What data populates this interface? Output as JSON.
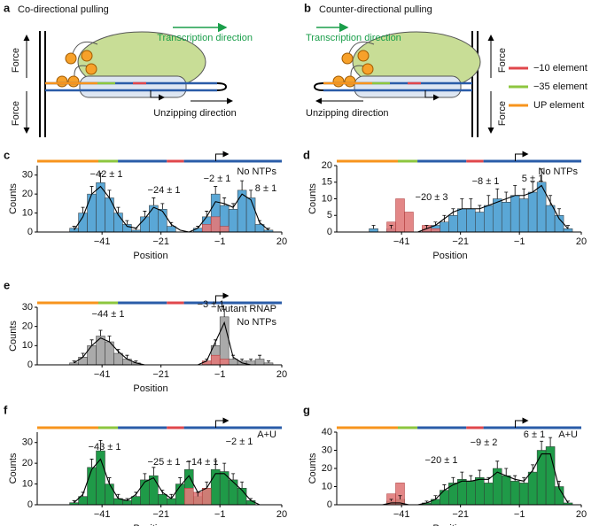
{
  "diagrams": [
    {
      "label": "a",
      "title": "Co-directional pulling",
      "force_top": "Force",
      "force_bottom": "Force",
      "transcription": "Transcription direction",
      "unzipping": "Unzipping direction"
    },
    {
      "label": "b",
      "title": "Counter-directional pulling",
      "force_top": "Force",
      "force_bottom": "Force",
      "transcription": "Transcription direction",
      "unzipping": "Unzipping direction"
    }
  ],
  "legend": [
    {
      "name": "−10 element",
      "color": "#e0474c"
    },
    {
      "name": "−35 element",
      "color": "#8dc63f"
    },
    {
      "name": "UP element",
      "color": "#f7941d"
    }
  ],
  "chart_data": [
    {
      "type": "histogram",
      "label": "c",
      "xlabel": "Position",
      "ylabel": "Counts",
      "color": "#5aa7d6",
      "red_color": "#e07a7a",
      "bins": [
        -52,
        -49,
        -46,
        -43,
        -40,
        -37,
        -34,
        -31,
        -28,
        -25,
        -22,
        -19,
        -16,
        -13,
        -10,
        -7,
        -4,
        -1,
        2,
        5,
        8,
        11,
        14,
        17
      ],
      "counts": [
        2,
        10,
        20,
        26,
        18,
        10,
        4,
        1,
        8,
        14,
        12,
        3,
        0,
        0,
        2,
        8,
        20,
        14,
        12,
        22,
        18,
        4,
        1
      ],
      "errors": [
        1,
        3,
        4,
        5,
        4,
        3,
        2,
        1,
        3,
        4,
        3,
        2,
        0,
        0,
        1,
        3,
        4,
        4,
        3,
        5,
        4,
        2,
        1
      ],
      "red_counts": [
        0,
        0,
        0,
        0,
        0,
        0,
        0,
        0,
        0,
        0,
        0,
        0,
        0,
        0,
        0,
        4,
        8,
        3,
        0,
        0,
        0,
        0,
        0
      ],
      "fit_x": [
        -50.5,
        -47.5,
        -44.5,
        -41.5,
        -38.5,
        -35.5,
        -32.5,
        -29.5,
        -26.5,
        -23.5,
        -20.5,
        -17.5,
        -14.5,
        -11.5,
        -8.5,
        -5.5,
        -2.5,
        0.5,
        3.5,
        6.5,
        9.5,
        12.5,
        15.5
      ],
      "fit_values": [
        1,
        8,
        20,
        24,
        18,
        9,
        3,
        2,
        7,
        13,
        11,
        4,
        1,
        0,
        2,
        8,
        16,
        15,
        13,
        20,
        17,
        5,
        1
      ],
      "xlim": [
        -63,
        20
      ],
      "xticks": [
        {
          "value": -41,
          "label": "−41"
        },
        {
          "value": -21,
          "label": "−21"
        },
        {
          "value": -1,
          "label": "−1"
        },
        20
      ],
      "ylim": [
        0,
        35
      ],
      "yticks": [
        0,
        10,
        20,
        30
      ],
      "annotations": [
        "−42 ± 1",
        "−24 ± 1",
        "−2 ± 1",
        "8 ± 1",
        "No NTPs"
      ]
    },
    {
      "type": "histogram",
      "label": "d",
      "xlabel": "Position",
      "ylabel": "Counts",
      "color": "#5aa7d6",
      "red_color": "#e07a7a",
      "bins": [
        -52,
        -49,
        -46,
        -43,
        -40,
        -37,
        -34,
        -31,
        -28,
        -25,
        -22,
        -19,
        -16,
        -13,
        -10,
        -7,
        -4,
        -1,
        2,
        5,
        8,
        11,
        14,
        17
      ],
      "counts": [
        1,
        0,
        1,
        0,
        0,
        0,
        1,
        2,
        3,
        5,
        7,
        7,
        6,
        8,
        10,
        9,
        11,
        10,
        12,
        15,
        8,
        5,
        1
      ],
      "errors": [
        1,
        0,
        1,
        0,
        0,
        0,
        1,
        1,
        2,
        2,
        3,
        3,
        2,
        3,
        3,
        3,
        3,
        3,
        3,
        4,
        3,
        2,
        1
      ],
      "red_counts": [
        0,
        0,
        3,
        10,
        6,
        0,
        2,
        1,
        0,
        0,
        0,
        0,
        0,
        0,
        0,
        0,
        0,
        0,
        0,
        0,
        0,
        0,
        0
      ],
      "fit_x": [
        -50.5,
        -47.5,
        -44.5,
        -41.5,
        -38.5,
        -35.5,
        -32.5,
        -29.5,
        -26.5,
        -23.5,
        -20.5,
        -17.5,
        -14.5,
        -11.5,
        -8.5,
        -5.5,
        -2.5,
        0.5,
        3.5,
        6.5,
        9.5,
        12.5,
        15.5
      ],
      "fit_values": [
        0,
        0,
        0,
        0,
        0,
        0,
        1,
        2,
        4,
        6,
        7,
        7,
        7,
        8,
        9,
        10,
        11,
        11,
        12,
        14,
        9,
        4,
        1
      ],
      "xlim": [
        -63,
        20
      ],
      "xticks": [
        {
          "value": -41,
          "label": "−41"
        },
        {
          "value": -21,
          "label": "−21"
        },
        {
          "value": -1,
          "label": "−1"
        },
        20
      ],
      "ylim": [
        0,
        20
      ],
      "yticks": [
        0,
        5,
        10,
        15,
        20
      ],
      "annotations": [
        "−20 ± 3",
        "−8 ± 1",
        "5 ± 1",
        "No NTPs"
      ]
    },
    {
      "type": "histogram",
      "label": "e",
      "xlabel": "Position",
      "ylabel": "Counts",
      "color": "#aaaaaa",
      "red_color": "#e07a7a",
      "bins": [
        -52,
        -49,
        -46,
        -43,
        -40,
        -37,
        -34,
        -31,
        -28,
        -25,
        -22,
        -19,
        -16,
        -13,
        -10,
        -7,
        -4,
        -1,
        2,
        5,
        8,
        11,
        14,
        17
      ],
      "counts": [
        1,
        4,
        10,
        15,
        12,
        6,
        3,
        1,
        0,
        0,
        0,
        0,
        0,
        0,
        0,
        2,
        10,
        25,
        3,
        2,
        2,
        3,
        1
      ],
      "errors": [
        1,
        2,
        3,
        3,
        3,
        2,
        2,
        1,
        0,
        0,
        0,
        0,
        0,
        0,
        0,
        1,
        3,
        4,
        2,
        1,
        1,
        2,
        1
      ],
      "red_counts": [
        0,
        0,
        0,
        0,
        0,
        0,
        0,
        0,
        0,
        0,
        0,
        0,
        0,
        0,
        0,
        2,
        5,
        3,
        0,
        0,
        0,
        0,
        0
      ],
      "fit_x": [
        -50.5,
        -47.5,
        -44.5,
        -41.5,
        -38.5,
        -35.5,
        -32.5,
        -29.5,
        -26.5,
        -23.5,
        -20.5,
        -17.5,
        -14.5,
        -11.5,
        -8.5,
        -5.5,
        -2.5,
        0.5,
        3.5,
        6.5,
        9.5,
        12.5,
        15.5
      ],
      "fit_values": [
        1,
        4,
        10,
        14,
        12,
        7,
        3,
        1,
        0,
        0,
        0,
        0,
        0,
        0,
        0,
        2,
        12,
        22,
        4,
        1,
        0,
        0,
        0
      ],
      "xlim": [
        -63,
        20
      ],
      "xticks": [
        {
          "value": -41,
          "label": "−41"
        },
        {
          "value": -21,
          "label": "−21"
        },
        {
          "value": -1,
          "label": "−1"
        },
        20
      ],
      "ylim": [
        0,
        30
      ],
      "yticks": [
        0,
        10,
        20,
        30
      ],
      "annotations": [
        "−44 ± 1",
        "−3 ± 1",
        "Mutant RNAP",
        "No NTPs"
      ]
    },
    {
      "type": "histogram",
      "label": "f",
      "xlabel": "Position",
      "ylabel": "Counts",
      "color": "#1f9a48",
      "red_color": "#e07a7a",
      "bins": [
        -52,
        -49,
        -46,
        -43,
        -40,
        -37,
        -34,
        -31,
        -28,
        -25,
        -22,
        -19,
        -16,
        -13,
        -10,
        -7,
        -4,
        -1,
        2,
        5,
        8,
        11,
        14,
        17
      ],
      "counts": [
        1,
        4,
        18,
        26,
        10,
        3,
        2,
        4,
        12,
        14,
        5,
        3,
        10,
        17,
        4,
        8,
        17,
        16,
        12,
        8,
        2,
        0,
        0
      ],
      "errors": [
        1,
        2,
        4,
        5,
        3,
        2,
        1,
        2,
        3,
        4,
        2,
        2,
        3,
        4,
        2,
        3,
        4,
        4,
        3,
        3,
        1,
        0,
        0
      ],
      "red_counts": [
        0,
        0,
        0,
        0,
        0,
        0,
        0,
        0,
        0,
        0,
        0,
        0,
        0,
        8,
        6,
        8,
        0,
        0,
        0,
        0,
        0,
        0,
        0
      ],
      "fit_x": [
        -50.5,
        -47.5,
        -44.5,
        -41.5,
        -38.5,
        -35.5,
        -32.5,
        -29.5,
        -26.5,
        -23.5,
        -20.5,
        -17.5,
        -14.5,
        -11.5,
        -8.5,
        -5.5,
        -2.5,
        0.5,
        3.5,
        6.5,
        9.5,
        12.5,
        15.5
      ],
      "fit_values": [
        1,
        5,
        17,
        22,
        10,
        3,
        2,
        5,
        11,
        13,
        6,
        3,
        9,
        14,
        6,
        8,
        15,
        15,
        11,
        7,
        2,
        0,
        0
      ],
      "xlim": [
        -63,
        20
      ],
      "xticks": [
        {
          "value": -41,
          "label": "−41"
        },
        {
          "value": -21,
          "label": "−21"
        },
        {
          "value": -1,
          "label": "−1"
        },
        20
      ],
      "ylim": [
        0,
        35
      ],
      "yticks": [
        0,
        10,
        20,
        30
      ],
      "annotations": [
        "−43 ± 1",
        "−25 ± 1",
        "−14 ± 1",
        "−2 ± 1",
        "A+U"
      ]
    },
    {
      "type": "histogram",
      "label": "g",
      "xlabel": "Position",
      "ylabel": "Counts",
      "color": "#1f9a48",
      "red_color": "#e07a7a",
      "bins": [
        -52,
        -49,
        -46,
        -43,
        -40,
        -37,
        -34,
        -31,
        -28,
        -25,
        -22,
        -19,
        -16,
        -13,
        -10,
        -7,
        -4,
        -1,
        2,
        5,
        8,
        11,
        14,
        17
      ],
      "counts": [
        0,
        0,
        2,
        3,
        0,
        0,
        1,
        3,
        8,
        12,
        14,
        13,
        15,
        12,
        20,
        16,
        13,
        12,
        18,
        30,
        32,
        10,
        1
      ],
      "errors": [
        0,
        0,
        1,
        2,
        0,
        0,
        1,
        2,
        3,
        3,
        4,
        3,
        4,
        3,
        4,
        4,
        3,
        3,
        4,
        5,
        5,
        3,
        1
      ],
      "red_counts": [
        0,
        0,
        6,
        12,
        0,
        0,
        0,
        0,
        0,
        0,
        0,
        0,
        0,
        0,
        0,
        0,
        0,
        0,
        0,
        0,
        0,
        0,
        0
      ],
      "fit_x": [
        -50.5,
        -47.5,
        -44.5,
        -41.5,
        -38.5,
        -35.5,
        -32.5,
        -29.5,
        -26.5,
        -23.5,
        -20.5,
        -17.5,
        -14.5,
        -11.5,
        -8.5,
        -5.5,
        -2.5,
        0.5,
        3.5,
        6.5,
        9.5,
        12.5,
        15.5
      ],
      "fit_values": [
        0,
        0,
        1,
        1,
        0,
        0,
        1,
        3,
        8,
        11,
        13,
        13,
        14,
        14,
        18,
        16,
        14,
        13,
        19,
        28,
        28,
        9,
        1
      ],
      "xlim": [
        -63,
        20
      ],
      "xticks": [
        {
          "value": -41,
          "label": "−41"
        },
        {
          "value": -21,
          "label": "−21"
        },
        {
          "value": -1,
          "label": "−1"
        },
        20
      ],
      "ylim": [
        0,
        40
      ],
      "yticks": [
        0,
        10,
        20,
        30,
        40
      ],
      "annotations": [
        "−20 ± 1",
        "−9 ± 2",
        "6 ± 1",
        "A+U"
      ]
    }
  ]
}
